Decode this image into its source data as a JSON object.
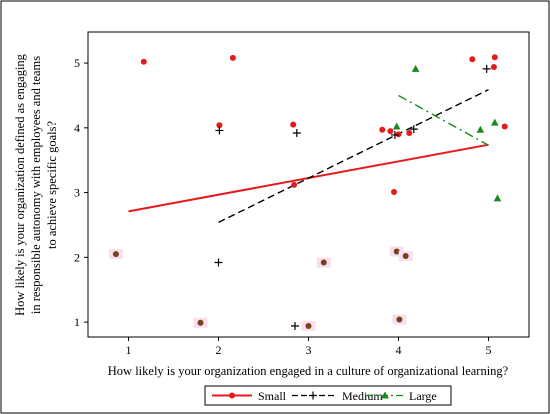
{
  "chart_data": {
    "type": "scatter",
    "xlabel": "How likely is your organization engaged in a culture of organizational learning?",
    "ylabel_lines": [
      "How likely is your organization defined as engaging",
      "in responsible autonomy with employees and teams",
      "to achieve specific goals?"
    ],
    "xlim": [
      0.55,
      5.45
    ],
    "ylim": [
      0.77,
      5.48
    ],
    "xticks": [
      "1",
      "2",
      "3",
      "4",
      "5"
    ],
    "yticks": [
      "1",
      "2",
      "3",
      "4",
      "5"
    ],
    "grid": false,
    "legend_position": "bottom-center",
    "series": [
      {
        "name": "Small",
        "color": "#e41a1c",
        "marker": "circle",
        "line_style": "solid",
        "points": [
          [
            1.17,
            5.02
          ],
          [
            2.16,
            5.08
          ],
          [
            2.01,
            4.04
          ],
          [
            2.83,
            4.05
          ],
          [
            3.82,
            3.97
          ],
          [
            3.91,
            3.95
          ],
          [
            4.0,
            3.9
          ],
          [
            4.12,
            3.92
          ],
          [
            4.82,
            5.06
          ],
          [
            5.07,
            5.09
          ],
          [
            5.06,
            4.94
          ],
          [
            5.18,
            4.02
          ],
          [
            3.95,
            3.01
          ],
          [
            2.84,
            3.12
          ]
        ],
        "fit": [
          [
            1.0,
            2.71
          ],
          [
            5.0,
            3.74
          ]
        ]
      },
      {
        "name": "Medium",
        "color": "#000000",
        "marker": "plus",
        "line_style": "dash",
        "points": [
          [
            2.01,
            3.96
          ],
          [
            2.87,
            3.92
          ],
          [
            4.98,
            4.91
          ],
          [
            4.17,
            3.98
          ],
          [
            3.96,
            3.89
          ],
          [
            2.0,
            1.92
          ],
          [
            2.85,
            0.94
          ]
        ],
        "fit": [
          [
            2.0,
            2.54
          ],
          [
            5.0,
            4.59
          ]
        ]
      },
      {
        "name": "Large",
        "color": "#1a8a1a",
        "marker": "triangle",
        "line_style": "dashdot",
        "points": [
          [
            4.19,
            4.91
          ],
          [
            3.98,
            4.02
          ],
          [
            4.91,
            3.97
          ],
          [
            5.07,
            4.08
          ],
          [
            5.1,
            2.91
          ]
        ],
        "fit": [
          [
            4.0,
            4.5
          ],
          [
            5.0,
            3.73
          ]
        ]
      },
      {
        "name": "",
        "color": "#7b3f1a",
        "marker": "circle",
        "line_style": "none",
        "points": [
          [
            0.86,
            2.05
          ],
          [
            1.8,
            0.99
          ],
          [
            3.0,
            0.94
          ],
          [
            3.17,
            1.92
          ],
          [
            3.98,
            2.09
          ],
          [
            4.08,
            2.02
          ],
          [
            4.01,
            1.04
          ]
        ]
      }
    ]
  }
}
